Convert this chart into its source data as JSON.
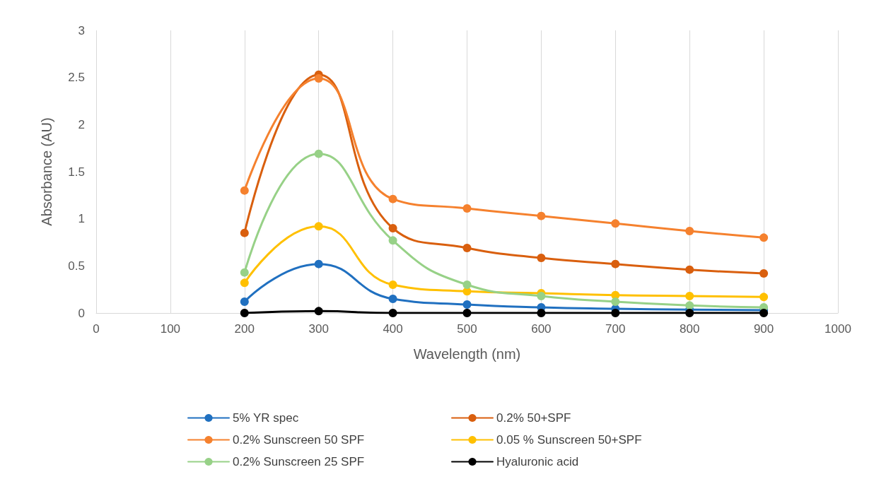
{
  "chart_data": {
    "type": "line",
    "xlabel": "Wavelength (nm)",
    "ylabel": "Absorbance (AU)",
    "x": [
      200,
      300,
      400,
      500,
      600,
      700,
      800,
      900
    ],
    "xlim": [
      0,
      1000
    ],
    "xticks": [
      0,
      100,
      200,
      300,
      400,
      500,
      600,
      700,
      800,
      900,
      1000
    ],
    "ylim": [
      0,
      3
    ],
    "yticks": [
      0,
      0.5,
      1,
      1.5,
      2,
      2.5,
      3
    ],
    "grid": "x",
    "legend": "bottom",
    "marker": "circle",
    "line_style": "solid",
    "series": [
      {
        "name": "5% YR spec",
        "color": "#2070c0",
        "values": [
          0.12,
          0.52,
          0.15,
          0.09,
          0.06,
          0.045,
          0.035,
          0.03
        ]
      },
      {
        "name": "0.2% 50+SPF",
        "color": "#d95f0e",
        "values": [
          0.85,
          2.53,
          0.9,
          0.69,
          0.585,
          0.52,
          0.46,
          0.42
        ]
      },
      {
        "name": "0.2% Sunscreen 50 SPF",
        "color": "#f5812e",
        "values": [
          1.3,
          2.49,
          1.21,
          1.11,
          1.03,
          0.95,
          0.87,
          0.8
        ]
      },
      {
        "name": "0.05 % Sunscreen 50+SPF",
        "color": "#ffc000",
        "values": [
          0.32,
          0.92,
          0.3,
          0.23,
          0.21,
          0.19,
          0.18,
          0.17
        ]
      },
      {
        "name": "0.2% Sunscreen 25 SPF",
        "color": "#97d187",
        "values": [
          0.43,
          1.69,
          0.77,
          0.3,
          0.18,
          0.12,
          0.08,
          0.06
        ]
      },
      {
        "name": "Hyaluronic acid",
        "color": "#000000",
        "values": [
          0,
          0.02,
          0,
          0,
          0,
          0,
          0,
          0
        ]
      }
    ]
  }
}
